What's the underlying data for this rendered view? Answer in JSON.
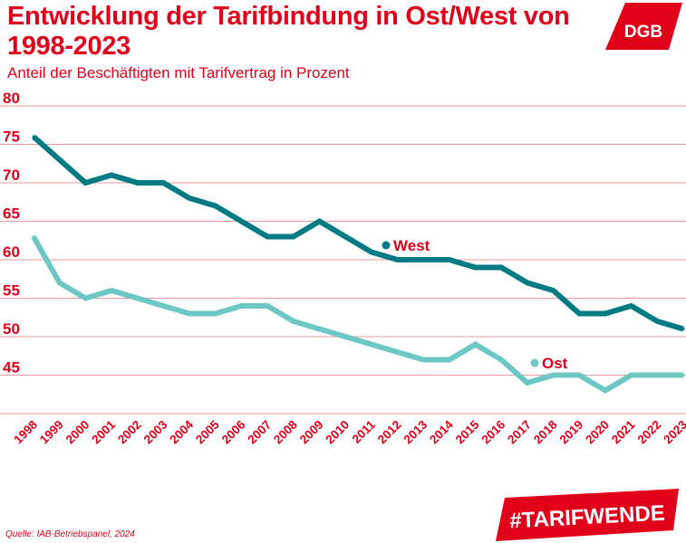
{
  "header": {
    "title": "Entwicklung der Tarifbindung in Ost/West von 1998-2023",
    "subtitle": "Anteil der Beschäftigten mit Tarifvertrag in Prozent"
  },
  "logo": {
    "text": "DGB",
    "color": "#e1001a"
  },
  "footer": {
    "source": "Quelle: IAB-Betriebspanel, 2024",
    "hashtag": "#TARIFWENDE"
  },
  "colors": {
    "accent": "#e1001a",
    "grid": "#e99a9a",
    "west": "#007b84",
    "ost": "#6dc8c5"
  },
  "chart_data": {
    "type": "line",
    "x": [
      1998,
      1999,
      2000,
      2001,
      2002,
      2003,
      2004,
      2005,
      2006,
      2007,
      2008,
      2009,
      2010,
      2011,
      2012,
      2013,
      2014,
      2015,
      2016,
      2017,
      2018,
      2019,
      2020,
      2021,
      2022,
      2023
    ],
    "ylim": [
      40,
      80
    ],
    "yticks": [
      45,
      50,
      55,
      60,
      65,
      70,
      75,
      80
    ],
    "grid": true,
    "series": [
      {
        "name": "West",
        "color": "#007b84",
        "values": [
          76,
          73,
          70,
          71,
          70,
          70,
          68,
          67,
          65,
          63,
          63,
          65,
          63,
          61,
          60,
          60,
          60,
          59,
          59,
          57,
          56,
          53,
          53,
          54,
          52,
          51
        ]
      },
      {
        "name": "Ost",
        "color": "#6dc8c5",
        "values": [
          63,
          57,
          55,
          56,
          55,
          54,
          53,
          53,
          54,
          54,
          52,
          51,
          50,
          49,
          48,
          47,
          47,
          49,
          47,
          44,
          45,
          45,
          43,
          45,
          45,
          45
        ]
      }
    ]
  }
}
